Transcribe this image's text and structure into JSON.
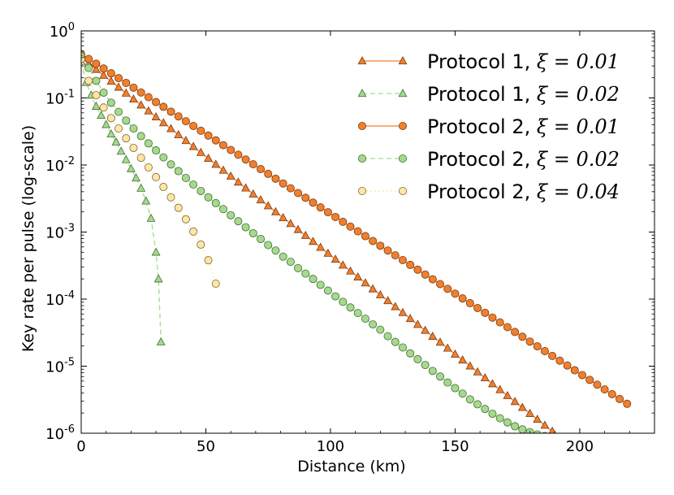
{
  "chart_data": {
    "type": "line",
    "title": "",
    "xlabel": "Distance (km)",
    "ylabel": "Key rate per pulse (log-scale)",
    "xlim": [
      0,
      230
    ],
    "ylim": [
      1e-06,
      1
    ],
    "yscale": "log",
    "xticks": [
      0,
      50,
      100,
      150,
      200
    ],
    "xtick_labels": [
      "0",
      "50",
      "100",
      "150",
      "200"
    ],
    "yticks": [
      1,
      0.1,
      0.01,
      0.001,
      0.0001,
      1e-05,
      1e-06
    ],
    "ytick_labels": [
      {
        "base": "10",
        "exp": "0"
      },
      {
        "base": "10",
        "exp": "-1"
      },
      {
        "base": "10",
        "exp": "-2"
      },
      {
        "base": "10",
        "exp": "-3"
      },
      {
        "base": "10",
        "exp": "-4"
      },
      {
        "base": "10",
        "exp": "-5"
      },
      {
        "base": "10",
        "exp": "-6"
      }
    ],
    "legend_position": "top-right",
    "series": [
      {
        "name": "Protocol 1, ξ = 0.01",
        "label_text": "Protocol 1, ",
        "xi_text": "ξ = 0.01",
        "marker": "triangle",
        "line_style": "solid",
        "line_color": "#f07f2e",
        "marker_fill": "#f07f2e",
        "marker_stroke": "#7a3a10",
        "points": [
          [
            0,
            0.4
          ],
          [
            190,
            1e-06
          ]
        ],
        "point_step_km": 3,
        "model": "exponential"
      },
      {
        "name": "Protocol 1, ξ = 0.02",
        "label_text": "Protocol 1, ",
        "xi_text": "ξ = 0.02",
        "marker": "triangle",
        "line_style": "dashed",
        "line_color": "#a6d98f",
        "marker_fill": "#a6d98f",
        "marker_stroke": "#3f6f2f",
        "points": [
          [
            0,
            0.35
          ],
          [
            2,
            0.17
          ],
          [
            4,
            0.11
          ],
          [
            6,
            0.075
          ],
          [
            8,
            0.055
          ],
          [
            10,
            0.04
          ],
          [
            12,
            0.029
          ],
          [
            14,
            0.022
          ],
          [
            16,
            0.016
          ],
          [
            18,
            0.012
          ],
          [
            20,
            0.0088
          ],
          [
            22,
            0.0064
          ],
          [
            24,
            0.0045
          ],
          [
            26,
            0.0029
          ],
          [
            28,
            0.0016
          ],
          [
            30,
            0.0005
          ],
          [
            31,
            0.0002
          ],
          [
            32,
            2.3e-05
          ]
        ]
      },
      {
        "name": "Protocol 2, ξ = 0.01",
        "label_text": "Protocol 2, ",
        "xi_text": "ξ = 0.01",
        "marker": "circle",
        "line_style": "solid",
        "line_color": "#f07f2e",
        "marker_fill": "#f07f2e",
        "marker_stroke": "#7a3a10",
        "points": [
          [
            0,
            0.45
          ],
          [
            220,
            2.6e-06
          ]
        ],
        "point_step_km": 3,
        "model": "exponential"
      },
      {
        "name": "Protocol 2, ξ = 0.02",
        "label_text": "Protocol 2, ",
        "xi_text": "ξ = 0.02",
        "marker": "circle",
        "line_style": "dashed",
        "line_color": "#a6d98f",
        "marker_fill": "#a6d98f",
        "marker_stroke": "#3f6f2f",
        "points": [
          [
            0,
            0.42
          ],
          [
            3,
            0.28
          ],
          [
            6,
            0.18
          ],
          [
            9,
            0.12
          ],
          [
            12,
            0.085
          ],
          [
            15,
            0.062
          ],
          [
            18,
            0.046
          ],
          [
            21,
            0.035
          ],
          [
            24,
            0.027
          ],
          [
            27,
            0.021
          ],
          [
            30,
            0.0165
          ],
          [
            33,
            0.013
          ],
          [
            36,
            0.0102
          ],
          [
            39,
            0.0081
          ],
          [
            42,
            0.0064
          ],
          [
            45,
            0.0051
          ],
          [
            48,
            0.0041
          ],
          [
            51,
            0.0033
          ],
          [
            54,
            0.0027
          ],
          [
            57,
            0.0022
          ],
          [
            60,
            0.00178
          ],
          [
            63,
            0.00145
          ],
          [
            66,
            0.00118
          ],
          [
            69,
            0.00096
          ],
          [
            72,
            0.00079
          ],
          [
            75,
            0.00064
          ],
          [
            78,
            0.00053
          ],
          [
            81,
            0.00043
          ],
          [
            84,
            0.00036
          ],
          [
            87,
            0.00029
          ],
          [
            90,
            0.00024
          ],
          [
            93,
            0.0002
          ],
          [
            96,
            0.000163
          ],
          [
            99,
            0.000134
          ],
          [
            102,
            0.00011
          ],
          [
            105,
            9.1e-05
          ],
          [
            108,
            7.5e-05
          ],
          [
            111,
            6.2e-05
          ],
          [
            114,
            5.1e-05
          ],
          [
            117,
            4.2e-05
          ],
          [
            120,
            3.5e-05
          ],
          [
            123,
            2.8e-05
          ],
          [
            126,
            2.3e-05
          ],
          [
            129,
            1.9e-05
          ],
          [
            132,
            1.55e-05
          ],
          [
            135,
            1.27e-05
          ],
          [
            138,
            1.04e-05
          ],
          [
            141,
            8.5e-06
          ],
          [
            144,
            7e-06
          ],
          [
            147,
            5.7e-06
          ],
          [
            150,
            4.7e-06
          ],
          [
            153,
            3.9e-06
          ],
          [
            156,
            3.2e-06
          ],
          [
            159,
            2.7e-06
          ],
          [
            162,
            2.3e-06
          ],
          [
            165,
            1.95e-06
          ],
          [
            168,
            1.67e-06
          ],
          [
            171,
            1.45e-06
          ],
          [
            174,
            1.27e-06
          ],
          [
            177,
            1.14e-06
          ],
          [
            180,
            1.04e-06
          ],
          [
            183,
            9.6e-07
          ],
          [
            186,
            9.1e-07
          ],
          [
            189,
            8.8e-07
          ],
          [
            192,
            8e-07
          ]
        ]
      },
      {
        "name": "Protocol 2, ξ = 0.04",
        "label_text": "Protocol 2, ",
        "xi_text": "ξ = 0.04",
        "marker": "circle",
        "line_style": "dotted",
        "line_color": "#fde6a8",
        "marker_fill": "#fde6a8",
        "marker_stroke": "#7a6a30",
        "points": [
          [
            0,
            0.38
          ],
          [
            3,
            0.18
          ],
          [
            6,
            0.11
          ],
          [
            9,
            0.072
          ],
          [
            12,
            0.05
          ],
          [
            15,
            0.035
          ],
          [
            18,
            0.025
          ],
          [
            21,
            0.018
          ],
          [
            24,
            0.0128
          ],
          [
            27,
            0.0092
          ],
          [
            30,
            0.0066
          ],
          [
            33,
            0.0047
          ],
          [
            36,
            0.0033
          ],
          [
            39,
            0.0023
          ],
          [
            42,
            0.00155
          ],
          [
            45,
            0.00102
          ],
          [
            48,
            0.00065
          ],
          [
            51,
            0.00038
          ],
          [
            54,
            0.00017
          ]
        ]
      }
    ]
  }
}
